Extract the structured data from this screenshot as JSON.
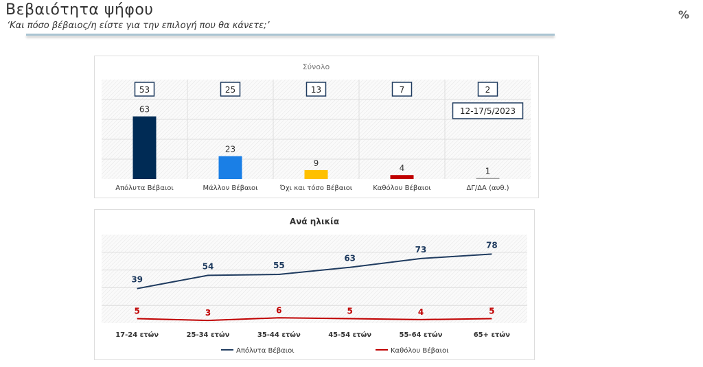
{
  "header": {
    "title": "Βεβαιότητα ψήφου",
    "subtitle": "‘Και πόσο βέβαιος/η είστε για την επιλογή που θα κάνετε;’",
    "unit": "%"
  },
  "chart_data": [
    {
      "type": "bar",
      "title": "Σύνολο",
      "categories": [
        "Απόλυτα Βέβαιοι",
        "Μάλλον Βέβαιοι",
        "Όχι και τόσο Βέβαιοι",
        "Καθόλου Βέβαιοι",
        "ΔΓ/ΔΑ (αυθ.)"
      ],
      "values": [
        63,
        23,
        9,
        4,
        1
      ],
      "boxed_values": [
        "53",
        "25",
        "13",
        "7",
        "2"
      ],
      "colors": [
        "#002b55",
        "#1a7fe6",
        "#ffc000",
        "#c00000",
        "#999999"
      ],
      "annotation": "12-17/5/2023",
      "ylim": [
        0,
        100
      ],
      "grid": true
    },
    {
      "type": "line",
      "title": "Ανά ηλικία",
      "categories": [
        "17-24 ετών",
        "25-34 ετών",
        "35-44 ετών",
        "45-54 ετών",
        "55-64 ετών",
        "65+ ετών"
      ],
      "series": [
        {
          "name": "Απόλυτα Βέβαιοι",
          "values": [
            39,
            54,
            55,
            63,
            73,
            78
          ],
          "color": "#1f3b5f"
        },
        {
          "name": "Καθόλου Βέβαιοι",
          "values": [
            5,
            3,
            6,
            5,
            4,
            5
          ],
          "color": "#c00000"
        }
      ],
      "ylim": [
        0,
        100
      ],
      "grid": true,
      "legend": "bottom"
    }
  ]
}
